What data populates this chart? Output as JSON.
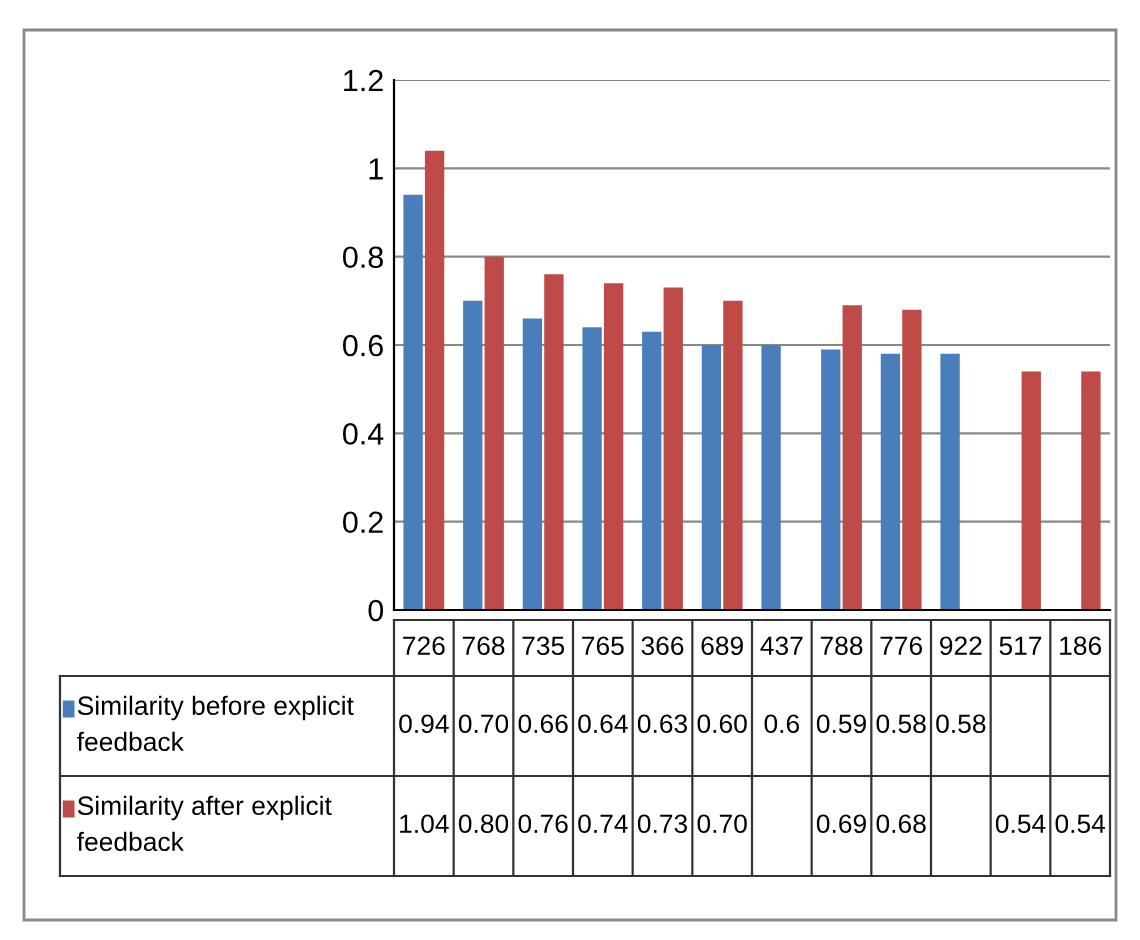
{
  "chart_data": {
    "type": "bar",
    "categories": [
      "726",
      "768",
      "735",
      "765",
      "366",
      "689",
      "437",
      "788",
      "776",
      "922",
      "517",
      "186"
    ],
    "series": [
      {
        "name": "Similarity before explicit feedback",
        "color": "#4a7ebb",
        "values": [
          0.94,
          0.7,
          0.66,
          0.64,
          0.63,
          0.6,
          0.6,
          0.59,
          0.58,
          0.58,
          null,
          null
        ],
        "value_labels": [
          "0.94",
          "0.70",
          "0.66",
          "0.64",
          "0.63",
          "0.60",
          "0.6",
          "0.59",
          "0.58",
          "0.58",
          null,
          null
        ]
      },
      {
        "name": "Similarity after explicit feedback",
        "color": "#be4b48",
        "values": [
          1.04,
          0.8,
          0.76,
          0.74,
          0.73,
          0.7,
          null,
          0.69,
          0.68,
          null,
          0.54,
          0.54
        ],
        "value_labels": [
          "1.04",
          "0.80",
          "0.76",
          "0.74",
          "0.73",
          "0.70",
          null,
          "0.69",
          "0.68",
          null,
          "0.54",
          "0.54"
        ]
      }
    ],
    "ylim": [
      0,
      1.2
    ],
    "yticks": [
      0,
      {
        "value": 0.2,
        "label": "0.2"
      },
      {
        "value": 0.4,
        "label": "0.4"
      },
      {
        "value": 0.6,
        "label": "0.6"
      },
      {
        "value": 0.8,
        "label": "0.8"
      },
      1,
      {
        "value": 1.2,
        "label": "1.2"
      }
    ],
    "grid": "y",
    "legend": "bottom"
  }
}
